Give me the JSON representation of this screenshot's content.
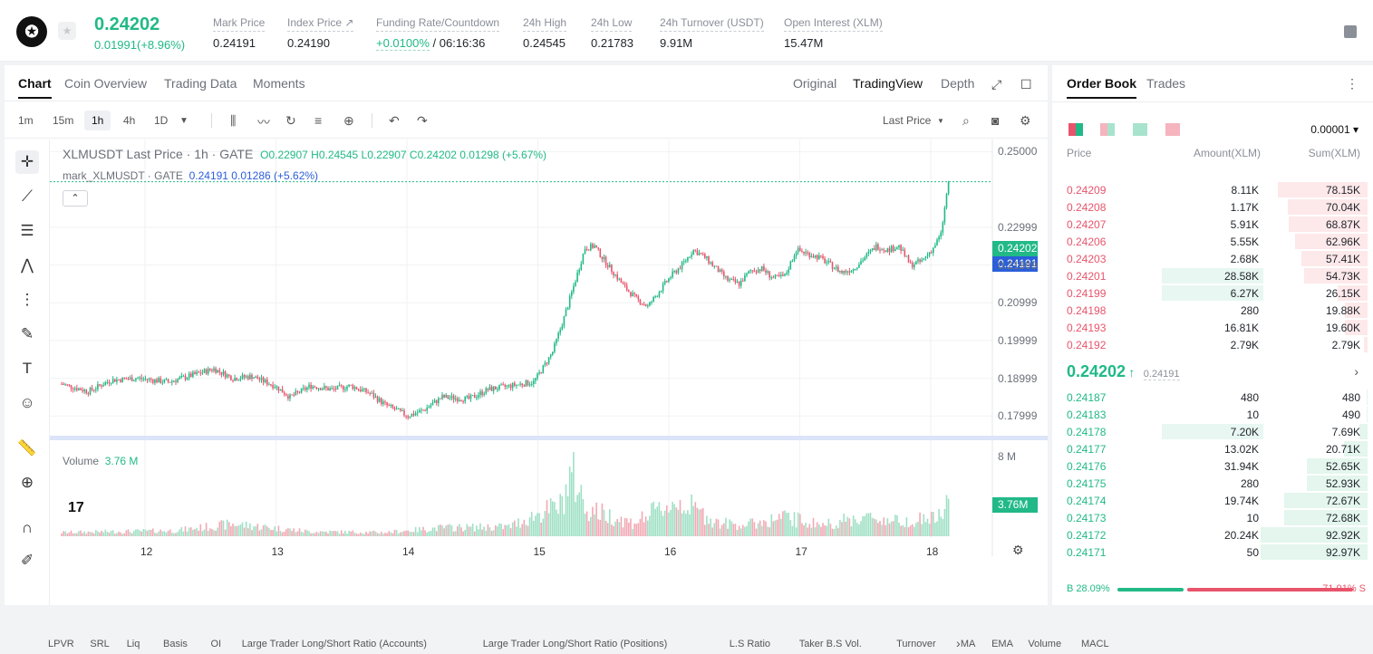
{
  "header": {
    "logo_glyph": "✪",
    "price": "0.24202",
    "change": "0.01991(+8.96%)",
    "stats": [
      {
        "label": "Mark Price",
        "value": "0.24191"
      },
      {
        "label": "Index Price ↗",
        "value": "0.24190"
      },
      {
        "label": "Funding Rate/Countdown",
        "value_green": "+0.0100%",
        "value": " / 06:16:36"
      },
      {
        "label": "24h High",
        "value": "0.24545"
      },
      {
        "label": "24h Low",
        "value": "0.21783"
      },
      {
        "label": "24h Turnover (USDT)",
        "value": "9.91M"
      },
      {
        "label": "Open Interest (XLM)",
        "value": "15.47M"
      }
    ]
  },
  "chart_tabs": [
    "Chart",
    "Coin Overview",
    "Trading Data",
    "Moments"
  ],
  "view_tabs": [
    "Original",
    "TradingView",
    "Depth"
  ],
  "timeframes": [
    "1m",
    "15m",
    "1h",
    "4h",
    "1D"
  ],
  "last_price_select": "Last Price",
  "legend": {
    "main": "XLMUSDT Last Price · 1h · GATE",
    "ohlc": "O0.22907 H0.24545 L0.22907 C0.24202 0.01298 (+5.67%)",
    "mark": "mark_XLMUSDT · GATE",
    "mark_vals": "0.24191 0.01286 (+5.62%)",
    "volume_label": "Volume",
    "volume_value": "3.76 M"
  },
  "price_tags": {
    "last": "0.24202",
    "mark": "0.24191",
    "volume": "3.76M"
  },
  "bottom_indicators": [
    "LPVR",
    "SRL",
    "Liq",
    "Basis",
    "OI",
    "Large Trader Long/Short Ratio (Accounts)",
    "Large Trader Long/Short Ratio (Positions)",
    "L.S Ratio",
    "Taker B.S Vol.",
    "Turnover",
    "MA",
    "EMA",
    "Volume",
    "MACL"
  ],
  "chart_data": {
    "type": "candlestick",
    "title": "XLMUSDT Last Price · 1h · GATE",
    "x_ticks": [
      "12",
      "13",
      "14",
      "15",
      "16",
      "17",
      "18"
    ],
    "y_ticks": [
      "0.25000",
      "0.22999",
      "0.21999",
      "0.20999",
      "0.19999",
      "0.18999",
      "0.17999"
    ],
    "volume_ticks": [
      "8 M"
    ],
    "ylim": [
      0.1755,
      0.2513
    ],
    "volume_max": 8,
    "series": [
      {
        "name": "XLMUSDT Last Price",
        "kind": "candles",
        "close_anchors": [
          [
            0,
            0.1885
          ],
          [
            14,
            0.1865
          ],
          [
            26,
            0.1895
          ],
          [
            40,
            0.19
          ],
          [
            56,
            0.189
          ],
          [
            70,
            0.191
          ],
          [
            80,
            0.1925
          ],
          [
            90,
            0.19
          ],
          [
            100,
            0.1905
          ],
          [
            112,
            0.188
          ],
          [
            120,
            0.185
          ],
          [
            131,
            0.188
          ],
          [
            142,
            0.187
          ],
          [
            152,
            0.188
          ],
          [
            162,
            0.186
          ],
          [
            170,
            0.183
          ],
          [
            176,
            0.1815
          ],
          [
            182,
            0.18
          ],
          [
            190,
            0.1815
          ],
          [
            200,
            0.185
          ],
          [
            214,
            0.1845
          ],
          [
            224,
            0.187
          ],
          [
            236,
            0.188
          ],
          [
            248,
            0.189
          ],
          [
            252,
            0.192
          ],
          [
            258,
            0.197
          ],
          [
            264,
            0.206
          ],
          [
            270,
            0.216
          ],
          [
            275,
            0.2245
          ],
          [
            280,
            0.225
          ],
          [
            284,
            0.222
          ],
          [
            290,
            0.218
          ],
          [
            296,
            0.214
          ],
          [
            302,
            0.211
          ],
          [
            308,
            0.209
          ],
          [
            314,
            0.213
          ],
          [
            320,
            0.217
          ],
          [
            326,
            0.22
          ],
          [
            332,
            0.224
          ],
          [
            338,
            0.222
          ],
          [
            344,
            0.219
          ],
          [
            350,
            0.216
          ],
          [
            356,
            0.215
          ],
          [
            362,
            0.2185
          ],
          [
            368,
            0.219
          ],
          [
            374,
            0.2165
          ],
          [
            380,
            0.217
          ],
          [
            386,
            0.224
          ],
          [
            392,
            0.223
          ],
          [
            398,
            0.222
          ],
          [
            404,
            0.22
          ],
          [
            410,
            0.218
          ],
          [
            416,
            0.219
          ],
          [
            422,
            0.222
          ],
          [
            428,
            0.225
          ],
          [
            434,
            0.224
          ],
          [
            440,
            0.225
          ],
          [
            446,
            0.22
          ],
          [
            452,
            0.221
          ],
          [
            458,
            0.2245
          ],
          [
            462,
            0.228
          ],
          [
            466,
            0.242
          ]
        ]
      },
      {
        "name": "mark_XLMUSDT",
        "value": 0.24191
      }
    ],
    "volume": {
      "label": "Volume",
      "last": 3.76,
      "anchors": [
        [
          0,
          0.4
        ],
        [
          60,
          0.6
        ],
        [
          90,
          1.3
        ],
        [
          130,
          0.5
        ],
        [
          170,
          0.4
        ],
        [
          200,
          0.9
        ],
        [
          235,
          1.0
        ],
        [
          252,
          2.5
        ],
        [
          262,
          3.2
        ],
        [
          268,
          6.5
        ],
        [
          272,
          5.0
        ],
        [
          275,
          3.0
        ],
        [
          300,
          1.4
        ],
        [
          318,
          3.2
        ],
        [
          326,
          3.6
        ],
        [
          345,
          1.4
        ],
        [
          360,
          1.2
        ],
        [
          380,
          2.0
        ],
        [
          400,
          1.2
        ],
        [
          420,
          2.0
        ],
        [
          440,
          1.6
        ],
        [
          462,
          2.0
        ],
        [
          466,
          3.76
        ]
      ]
    }
  },
  "orderbook": {
    "tabs": [
      "Order Book",
      "Trades"
    ],
    "precision": "0.00001",
    "headers": [
      "Price",
      "Amount(XLM)",
      "Sum(XLM)"
    ],
    "asks": [
      {
        "price": "0.24209",
        "amount": "8.11K",
        "sum": "78.15K",
        "sum_frac": 0.84,
        "amt_frac": 0
      },
      {
        "price": "0.24208",
        "amount": "1.17K",
        "sum": "70.04K",
        "sum_frac": 0.75,
        "amt_frac": 0
      },
      {
        "price": "0.24207",
        "amount": "5.91K",
        "sum": "68.87K",
        "sum_frac": 0.74,
        "amt_frac": 0
      },
      {
        "price": "0.24206",
        "amount": "5.55K",
        "sum": "62.96K",
        "sum_frac": 0.68,
        "amt_frac": 0
      },
      {
        "price": "0.24203",
        "amount": "2.68K",
        "sum": "57.41K",
        "sum_frac": 0.62,
        "amt_frac": 0
      },
      {
        "price": "0.24201",
        "amount": "28.58K",
        "sum": "54.73K",
        "sum_frac": 0.59,
        "amt_frac": 0.31
      },
      {
        "price": "0.24199",
        "amount": "6.27K",
        "sum": "26.15K",
        "sum_frac": 0.28,
        "amt_frac": 0.31
      },
      {
        "price": "0.24198",
        "amount": "280",
        "sum": "19.88K",
        "sum_frac": 0.21,
        "amt_frac": 0
      },
      {
        "price": "0.24193",
        "amount": "16.81K",
        "sum": "19.60K",
        "sum_frac": 0.21,
        "amt_frac": 0
      },
      {
        "price": "0.24192",
        "amount": "2.79K",
        "sum": "2.79K",
        "sum_frac": 0.03,
        "amt_frac": 0
      }
    ],
    "mid_price": "0.24202",
    "mid_arrow": "↑",
    "mid_mark": "0.24191",
    "bids": [
      {
        "price": "0.24187",
        "amount": "480",
        "sum": "480",
        "sum_frac": 0.005,
        "amt_frac": 0
      },
      {
        "price": "0.24183",
        "amount": "10",
        "sum": "490",
        "sum_frac": 0.005,
        "amt_frac": 0
      },
      {
        "price": "0.24178",
        "amount": "7.20K",
        "sum": "7.69K",
        "sum_frac": 0.08,
        "amt_frac": 0.31
      },
      {
        "price": "0.24177",
        "amount": "13.02K",
        "sum": "20.71K",
        "sum_frac": 0.22,
        "amt_frac": 0
      },
      {
        "price": "0.24176",
        "amount": "31.94K",
        "sum": "52.65K",
        "sum_frac": 0.57,
        "amt_frac": 0
      },
      {
        "price": "0.24175",
        "amount": "280",
        "sum": "52.93K",
        "sum_frac": 0.57,
        "amt_frac": 0
      },
      {
        "price": "0.24174",
        "amount": "19.74K",
        "sum": "72.67K",
        "sum_frac": 0.78,
        "amt_frac": 0
      },
      {
        "price": "0.24173",
        "amount": "10",
        "sum": "72.68K",
        "sum_frac": 0.78,
        "amt_frac": 0
      },
      {
        "price": "0.24172",
        "amount": "20.24K",
        "sum": "92.92K",
        "sum_frac": 1.0,
        "amt_frac": 0
      },
      {
        "price": "0.24171",
        "amount": "50",
        "sum": "92.97K",
        "sum_frac": 1.0,
        "amt_frac": 0
      }
    ],
    "buy_ratio": "B 28.09%",
    "sell_ratio": "71.91% S",
    "buy_frac": 0.2809
  },
  "colors": {
    "up": "#21b987",
    "down": "#e8546b",
    "mark_line": "#2b5fd9",
    "text": "#1f2329",
    "muted": "#8a8f98"
  }
}
